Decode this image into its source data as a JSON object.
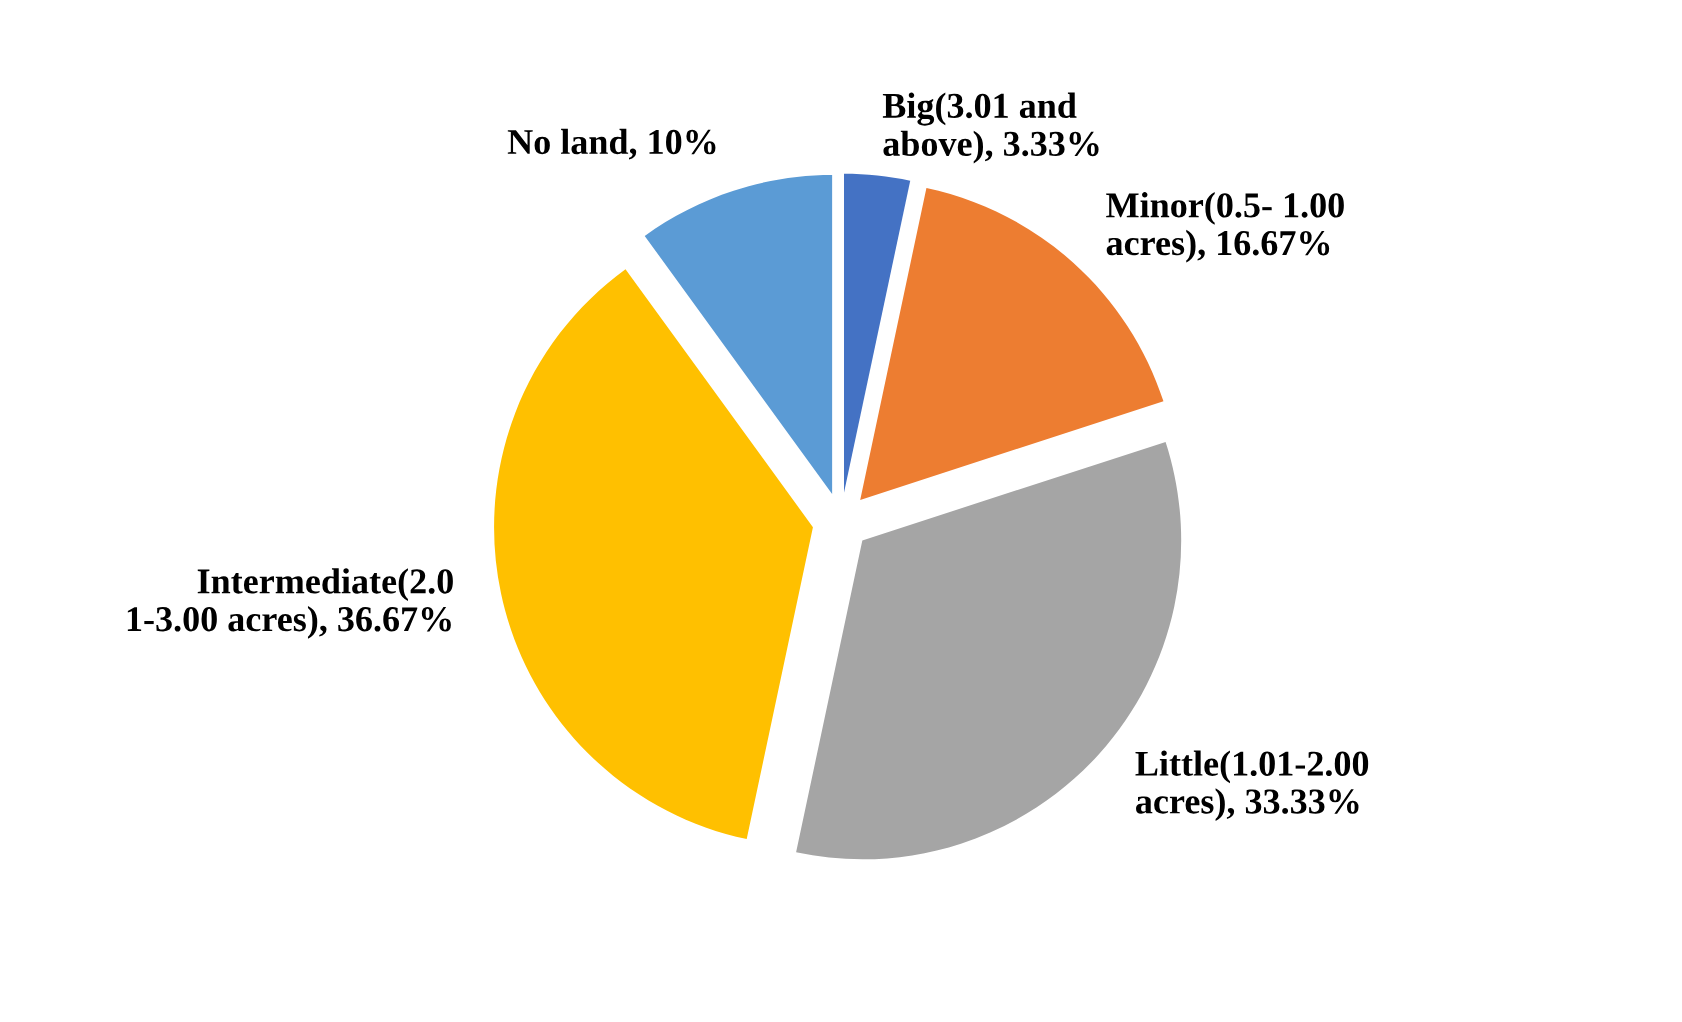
{
  "chart_data": {
    "type": "pie",
    "categories": [
      "Big(3.01 and\nabove)",
      "Minor(0.5- 1.00\nacres)",
      "Little(1.01-2.00\nacres)",
      "Intermediate(2.0\n1-3.00 acres)",
      "No land"
    ],
    "values": [
      3.33,
      16.67,
      33.33,
      36.67,
      10
    ],
    "value_labels": [
      "3.33%",
      "16.67%",
      "33.33%",
      "36.67%",
      "10%"
    ],
    "colors": [
      "#4472c4",
      "#ed7d31",
      "#a5a5a5",
      "#ffc000",
      "#5b9bd5"
    ],
    "legend": false
  }
}
